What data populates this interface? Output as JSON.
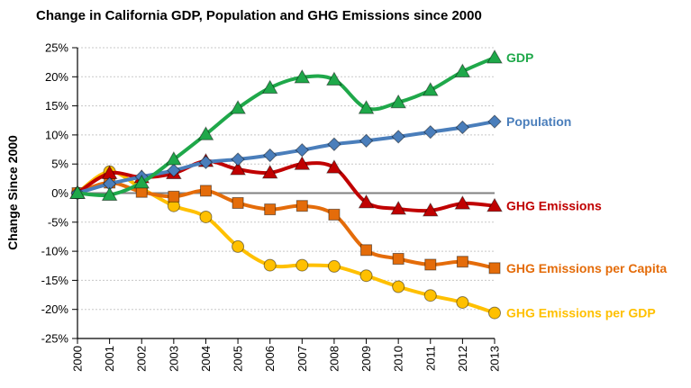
{
  "chart_data": {
    "type": "line",
    "title": "Change in California GDP, Population and GHG Emissions since 2000",
    "xlabel": "",
    "ylabel": "Change Since 2000",
    "x": [
      2000,
      2001,
      2002,
      2003,
      2004,
      2005,
      2006,
      2007,
      2008,
      2009,
      2010,
      2011,
      2012,
      2013
    ],
    "ylim": [
      -25,
      25
    ],
    "yticks": [
      25,
      20,
      15,
      10,
      5,
      0,
      -5,
      -10,
      -15,
      -20,
      -25
    ],
    "ytick_labels": [
      "25%",
      "20%",
      "15%",
      "10%",
      "5%",
      "0%",
      "-5%",
      "-10%",
      "-15%",
      "-20%",
      "-25%"
    ],
    "grid": "horizontal dotted",
    "legend": "direct labels at right end of lines",
    "series": [
      {
        "name": "GDP",
        "color": "#1fa84a",
        "marker": "triangle",
        "values": [
          0,
          -0.3,
          1.8,
          5.8,
          10.1,
          14.6,
          18.1,
          19.9,
          19.5,
          14.6,
          15.6,
          17.7,
          20.9,
          23.3
        ]
      },
      {
        "name": "Population",
        "color": "#4a7ebb",
        "marker": "diamond",
        "values": [
          0,
          1.6,
          2.8,
          3.9,
          5.3,
          5.8,
          6.5,
          7.4,
          8.4,
          9.0,
          9.7,
          10.5,
          11.3,
          12.3
        ]
      },
      {
        "name": "GHG Emissions",
        "color": "#c00000",
        "marker": "triangle",
        "values": [
          0,
          3.4,
          2.7,
          3.4,
          5.5,
          4.1,
          3.5,
          5.0,
          4.4,
          -1.6,
          -2.7,
          -3.0,
          -1.8,
          -2.2
        ]
      },
      {
        "name": "GHG Emissions per Capita",
        "color": "#e46c0a",
        "marker": "square",
        "values": [
          0,
          1.8,
          0.2,
          -0.6,
          0.4,
          -1.7,
          -2.8,
          -2.2,
          -3.7,
          -9.8,
          -11.3,
          -12.3,
          -11.8,
          -12.9
        ]
      },
      {
        "name": "GHG Emissions per GDP",
        "color": "#ffc000",
        "marker": "circle",
        "values": [
          0,
          3.7,
          0.8,
          -2.2,
          -4.1,
          -9.2,
          -12.4,
          -12.4,
          -12.6,
          -14.2,
          -16.1,
          -17.6,
          -18.8,
          -20.6
        ]
      }
    ]
  }
}
